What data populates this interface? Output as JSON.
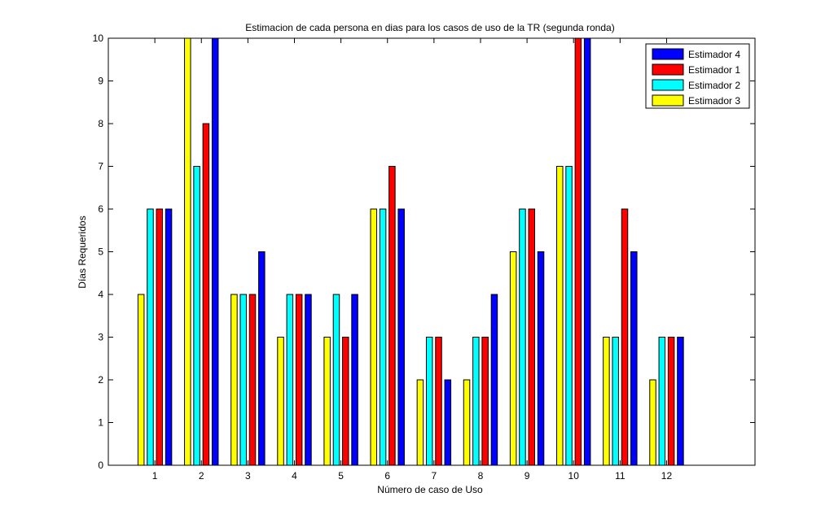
{
  "chart_data": {
    "type": "bar",
    "title": "Estimacion de cada persona en dias para los casos de uso de la TR (segunda ronda)",
    "xlabel": "Número de caso de Uso",
    "ylabel": "Días Requeridos",
    "xlim": [
      0,
      13.9
    ],
    "ylim": [
      0,
      10
    ],
    "grid": false,
    "legend_position": "top-right",
    "categories": [
      "1",
      "2",
      "3",
      "4",
      "5",
      "6",
      "7",
      "8",
      "9",
      "10",
      "11",
      "12"
    ],
    "yticks": [
      "0",
      "1",
      "2",
      "3",
      "4",
      "5",
      "6",
      "7",
      "8",
      "9",
      "10"
    ],
    "series": [
      {
        "name": "Estimador 3",
        "color": "#ffff00",
        "values": [
          4,
          10,
          4,
          3,
          3,
          6,
          2,
          2,
          5,
          7,
          3,
          2
        ]
      },
      {
        "name": "Estimador 2",
        "color": "#00ffff",
        "values": [
          6,
          7,
          4,
          4,
          4,
          6,
          3,
          3,
          6,
          7,
          3,
          3
        ]
      },
      {
        "name": "Estimador 1",
        "color": "#ff0000",
        "values": [
          6,
          8,
          4,
          4,
          3,
          7,
          3,
          3,
          6,
          10,
          6,
          3
        ]
      },
      {
        "name": "Estimador 4",
        "color": "#0000ff",
        "values": [
          6,
          10,
          5,
          4,
          4,
          6,
          2,
          4,
          5,
          10,
          5,
          3
        ]
      }
    ],
    "legend_order": [
      "Estimador 4",
      "Estimador 1",
      "Estimador 2",
      "Estimador 3"
    ]
  }
}
